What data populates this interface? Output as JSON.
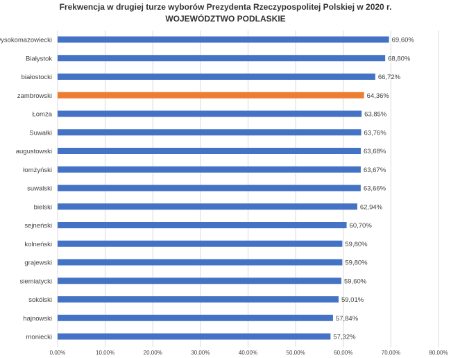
{
  "chart_data": {
    "type": "bar",
    "orientation": "horizontal",
    "title": "Frekwencja w drugiej turze wyborów Prezydenta Rzeczypospolitej Polskiej w 2020 r.",
    "subtitle": "WOJEWÓDZTWO PODLASKIE",
    "categories": [
      "wysokomazowiecki",
      "Białystok",
      "białostocki",
      "zambrowski",
      "Łomża",
      "Suwałki",
      "augustowski",
      "łomżyński",
      "suwalski",
      "bielski",
      "sejneński",
      "kolneński",
      "grajewski",
      "siemiatycki",
      "sokólski",
      "hajnowski",
      "moniecki"
    ],
    "values": [
      69.6,
      68.8,
      66.72,
      64.36,
      63.85,
      63.76,
      63.68,
      63.67,
      63.66,
      62.94,
      60.7,
      59.8,
      59.8,
      59.6,
      59.01,
      57.84,
      57.32
    ],
    "value_labels": [
      "69,60%",
      "68,80%",
      "66,72%",
      "64,36%",
      "63,85%",
      "63,76%",
      "63,68%",
      "63,67%",
      "63,66%",
      "62,94%",
      "60,70%",
      "59,80%",
      "59,80%",
      "59,60%",
      "59,01%",
      "57,84%",
      "57,32%"
    ],
    "highlight_index": 3,
    "xlim": [
      0,
      80
    ],
    "x_ticks": [
      0,
      10,
      20,
      30,
      40,
      50,
      60,
      70,
      80
    ],
    "x_tick_labels": [
      "0,00%",
      "10,00%",
      "20,00%",
      "30,00%",
      "40,00%",
      "50,00%",
      "60,00%",
      "70,00%",
      "80,00%"
    ],
    "grid": true,
    "legend": "none",
    "colors": {
      "bar": "#4472c4",
      "highlight": "#ed7d31",
      "grid": "#d9d9d9",
      "text": "#404040"
    }
  }
}
